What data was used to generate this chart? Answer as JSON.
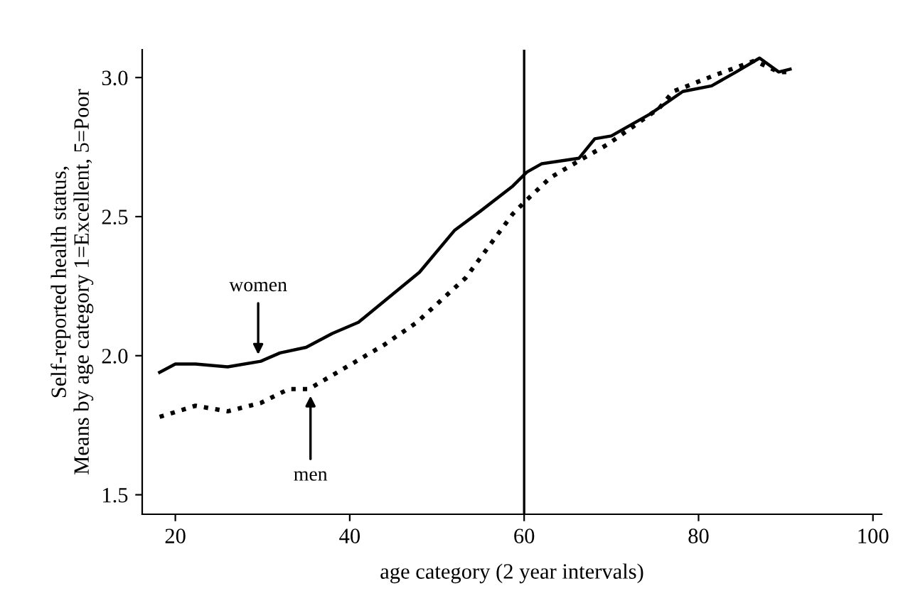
{
  "chart_data": {
    "type": "line",
    "xlabel": "age category (2 year intervals)",
    "ylabel": "Self-reported health status,\nMeans by age category 1=Excellent, 5=Poor",
    "series": [
      {
        "color": "#000000",
        "line_style": "solid",
        "x": [
          18.2,
          20,
          22.3,
          26,
          29.8,
          32,
          35,
          38,
          41,
          44.5,
          48,
          52,
          55,
          58.7,
          60.3,
          62,
          66.3,
          68.1,
          70,
          74.5,
          78.2,
          81.5,
          84.3,
          87,
          89.2,
          90.5
        ],
        "values": [
          1.94,
          1.97,
          1.97,
          1.96,
          1.98,
          2.01,
          2.03,
          2.08,
          2.12,
          2.21,
          2.3,
          2.45,
          2.52,
          2.61,
          2.66,
          2.69,
          2.71,
          2.78,
          2.79,
          2.87,
          2.95,
          2.97,
          3.02,
          3.07,
          3.02,
          3.03
        ]
      },
      {
        "color": "#000000",
        "line_style": "dotted",
        "x": [
          18.2,
          22.3,
          26,
          29.8,
          33,
          35.3,
          40.2,
          44,
          47.7,
          53.3,
          58.7,
          60.3,
          63,
          66.8,
          69.6,
          75.5,
          77.1,
          82,
          86.4,
          89.2,
          90.5
        ],
        "values": [
          1.78,
          1.82,
          1.8,
          1.83,
          1.88,
          1.88,
          1.97,
          2.04,
          2.12,
          2.28,
          2.51,
          2.56,
          2.64,
          2.71,
          2.76,
          2.89,
          2.95,
          3.01,
          3.06,
          3.02,
          3.02
        ]
      }
    ],
    "annotations": [
      {
        "text": "women",
        "x": 29.5,
        "y": 1.99
      },
      {
        "text": "men",
        "x": 35.5,
        "y": 1.87
      }
    ],
    "ref_lines": [
      {
        "axis": "x",
        "value": 60,
        "color": "#000000"
      }
    ],
    "xlim": [
      16.2,
      101
    ],
    "ylim": [
      1.43,
      3.1
    ],
    "xticks": [
      20,
      40,
      60,
      80,
      100
    ],
    "yticks": [
      {
        "value": 1.5,
        "label": "1.5"
      },
      {
        "value": 2.0,
        "label": "2.0"
      },
      {
        "value": 2.5,
        "label": "2.5"
      },
      {
        "value": 3.0,
        "label": "3.0"
      }
    ],
    "grid": false,
    "legend": false
  }
}
